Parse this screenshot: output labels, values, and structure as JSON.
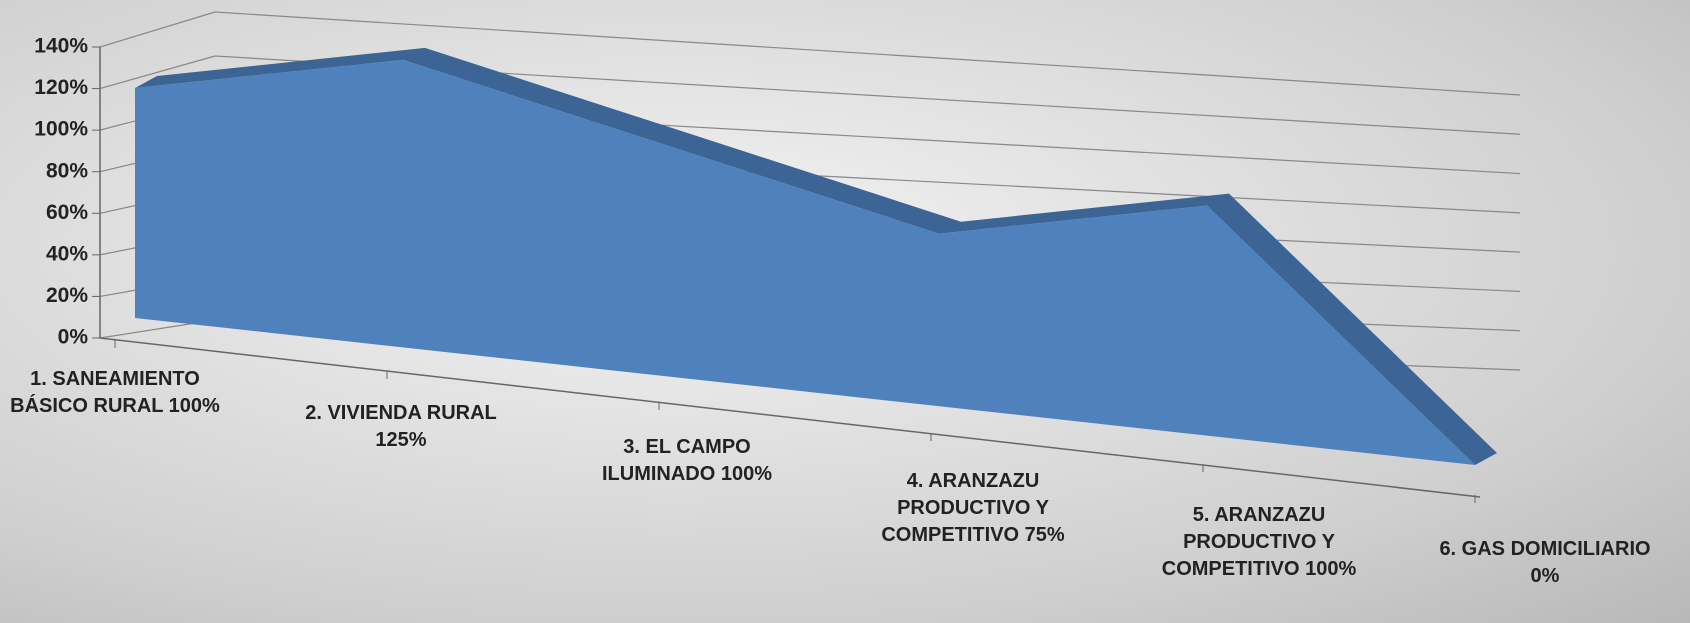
{
  "chart_data": {
    "type": "area3d",
    "categories": [
      "1. SANEAMIENTO BÁSICO RURAL 100%",
      "2. VIVIENDA RURAL 125%",
      "3. EL CAMPO ILUMINADO 100%",
      "4. ARANZAZU PRODUCTIVO Y COMPETITIVO 75%",
      "5. ARANZAZU PRODUCTIVO Y COMPETITIVO 100%",
      "6. GAS DOMICILIARIO 0%"
    ],
    "values": [
      100,
      125,
      100,
      75,
      100,
      0
    ],
    "color": "#4f81bd",
    "ylim": [
      0,
      140
    ],
    "yticks": [
      {
        "value": 0,
        "label": "0%"
      },
      {
        "value": 20,
        "label": "20%"
      },
      {
        "value": 40,
        "label": "40%"
      },
      {
        "value": 60,
        "label": "60%"
      },
      {
        "value": 80,
        "label": "80%"
      },
      {
        "value": 100,
        "label": "100%"
      },
      {
        "value": 120,
        "label": "120%"
      },
      {
        "value": 140,
        "label": "140%"
      }
    ],
    "grid": true
  }
}
